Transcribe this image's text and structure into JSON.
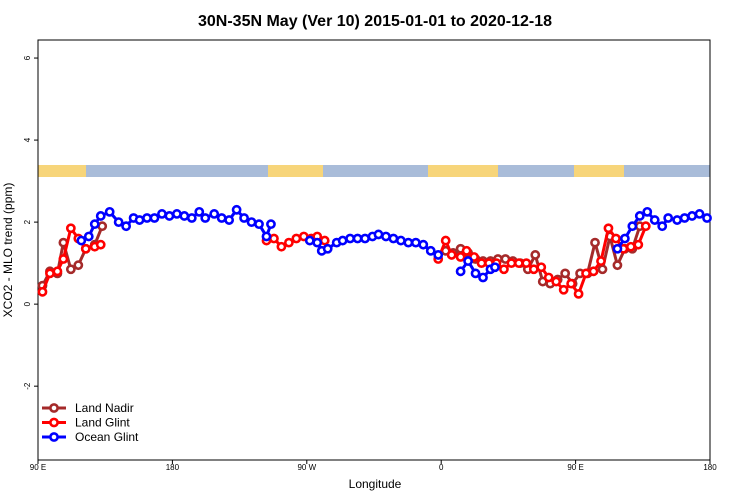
{
  "chart_data": {
    "type": "line",
    "title": "30N-35N May (Ver 10)   2015-01-01 to 2020-12-18",
    "x_label": "Longitude",
    "y_label": "XCO2 - MLO trend (ppm)",
    "xlim": [
      90,
      540
    ],
    "xticks": [
      {
        "value": 90,
        "label": "90 E"
      },
      {
        "value": 180,
        "label": "180"
      },
      {
        "value": 270,
        "label": "90 W"
      },
      {
        "value": 360,
        "label": "0"
      },
      {
        "value": 450,
        "label": "90 E"
      },
      {
        "value": 540,
        "label": "180"
      }
    ],
    "ylim": [
      -3.8,
      6.44
    ],
    "yticks": [
      -2,
      0,
      2,
      4,
      6
    ],
    "legend": "bottom-left",
    "series": [
      {
        "name": "Land Nadir",
        "color": "#a52a2a",
        "x": [
          93,
          98,
          103,
          107,
          112,
          117,
          122,
          128,
          133,
          300,
          363,
          368,
          373,
          378,
          383,
          388,
          393,
          398,
          403,
          408,
          413,
          418,
          423,
          428,
          433,
          438,
          443,
          448,
          453,
          458,
          463,
          468,
          473,
          478,
          483,
          488,
          493
        ],
        "values": [
          0.45,
          0.8,
          0.75,
          1.5,
          0.85,
          0.95,
          1.35,
          1.45,
          1.9,
          null,
          1.3,
          1.25,
          1.35,
          1.25,
          1.1,
          1.05,
          1.05,
          1.1,
          1.1,
          1.05,
          1.0,
          0.85,
          1.2,
          0.55,
          0.5,
          0.6,
          0.75,
          0.5,
          0.75,
          0.75,
          1.5,
          0.85,
          1.65,
          0.95,
          1.35,
          1.35,
          1.9
        ]
      },
      {
        "name": "Land Glint",
        "color": "#ff0000",
        "x": [
          93,
          98,
          103,
          107,
          112,
          117,
          122,
          128,
          132,
          200,
          243,
          248,
          253,
          258,
          263,
          268,
          273,
          277,
          282,
          320,
          358,
          363,
          367,
          373,
          377,
          382,
          387,
          392,
          397,
          402,
          407,
          412,
          417,
          422,
          427,
          432,
          437,
          442,
          447,
          452,
          457,
          462,
          467,
          472,
          477,
          482,
          487,
          492,
          497
        ],
        "values": [
          0.3,
          0.75,
          0.8,
          1.1,
          1.85,
          1.6,
          1.35,
          1.4,
          1.45,
          null,
          1.55,
          1.6,
          1.4,
          1.5,
          1.6,
          1.65,
          1.6,
          1.65,
          1.55,
          null,
          1.1,
          1.55,
          1.2,
          1.15,
          1.3,
          1.15,
          1.0,
          1.0,
          1.0,
          0.85,
          1.0,
          1.0,
          1.0,
          0.85,
          0.9,
          0.65,
          0.55,
          0.35,
          0.5,
          0.25,
          0.75,
          0.8,
          1.05,
          1.85,
          1.6,
          1.35,
          1.4,
          1.45,
          1.9
        ]
      },
      {
        "name": "Ocean Glint",
        "color": "#0000ff",
        "x": [
          119,
          124,
          128,
          132,
          138,
          144,
          149,
          154,
          158,
          163,
          168,
          173,
          178,
          183,
          188,
          193,
          198,
          202,
          208,
          213,
          218,
          223,
          228,
          233,
          238,
          243,
          246,
          260,
          272,
          277,
          280,
          284,
          290,
          294,
          299,
          304,
          309,
          314,
          318,
          323,
          328,
          333,
          338,
          343,
          348,
          353,
          358,
          365,
          373,
          378,
          383,
          388,
          393,
          396,
          450,
          478,
          483,
          488,
          493,
          498,
          503,
          508,
          512,
          518,
          523,
          528,
          533,
          538
        ],
        "values": [
          1.55,
          1.65,
          1.95,
          2.15,
          2.25,
          2.0,
          1.9,
          2.1,
          2.05,
          2.1,
          2.1,
          2.2,
          2.15,
          2.2,
          2.15,
          2.1,
          2.25,
          2.1,
          2.2,
          2.1,
          2.05,
          2.3,
          2.1,
          2.0,
          1.95,
          1.65,
          1.95,
          null,
          1.55,
          1.5,
          1.3,
          1.35,
          1.5,
          1.55,
          1.6,
          1.6,
          1.6,
          1.65,
          1.7,
          1.65,
          1.6,
          1.55,
          1.5,
          1.5,
          1.45,
          1.3,
          1.2,
          null,
          0.8,
          1.05,
          0.75,
          0.65,
          0.85,
          0.9,
          null,
          1.35,
          1.6,
          1.9,
          2.15,
          2.25,
          2.05,
          1.9,
          2.1,
          2.05,
          2.1,
          2.15,
          2.2,
          2.1
        ]
      }
    ]
  }
}
